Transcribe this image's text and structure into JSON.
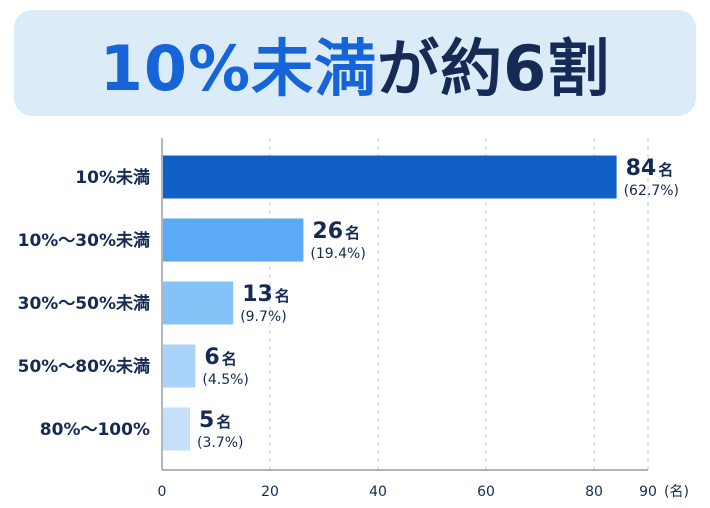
{
  "title": {
    "highlight": "10%未満",
    "connector": "が",
    "rest": "約6割"
  },
  "chart_data": {
    "type": "bar",
    "orientation": "horizontal",
    "categories": [
      "10%未満",
      "10%〜30%未満",
      "30%〜50%未満",
      "50%〜80%未満",
      "80%〜100%"
    ],
    "values": [
      84,
      26,
      13,
      6,
      5
    ],
    "percentages": [
      "(62.7%)",
      "(19.4%)",
      "(9.7%)",
      "(4.5%)",
      "(3.7%)"
    ],
    "value_unit": "名",
    "colors": [
      "#0f5fc7",
      "#5aaaf5",
      "#85c2f7",
      "#a9d3f8",
      "#c5e1fa"
    ],
    "xlim": [
      0,
      90
    ],
    "xticks": [
      0,
      20,
      40,
      60,
      80,
      90
    ],
    "x_unit_label": "(名)",
    "grid": "vertical-dashed"
  }
}
